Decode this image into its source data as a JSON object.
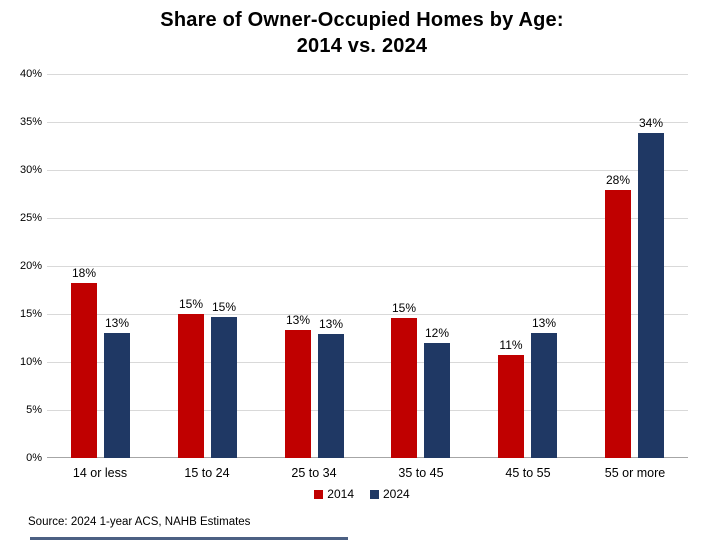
{
  "title": "Share of Owner-Occupied Homes by Age:\n2014 vs. 2024",
  "source": "Source: 2024 1-year ACS, NAHB Estimates",
  "colors": {
    "series_2014": "#C00000",
    "series_2024": "#1F3864",
    "gridline": "#D9D9D9",
    "axis_line": "#A6A6A6",
    "text": "#000000",
    "background": "#FFFFFF"
  },
  "chart_data": {
    "type": "bar",
    "title": "Share of Owner-Occupied Homes by Age: 2014 vs. 2024",
    "xlabel": "",
    "ylabel": "",
    "categories": [
      "14 or less",
      "15 to 24",
      "25 to 34",
      "35 to 45",
      "45 to 55",
      "55 or more"
    ],
    "series": [
      {
        "name": "2014",
        "color": "#C00000",
        "values": [
          18,
          15,
          13,
          15,
          11,
          28
        ],
        "values_exact": [
          18.2,
          15.0,
          13.3,
          14.6,
          10.7,
          27.9
        ],
        "labels": [
          "18%",
          "15%",
          "13%",
          "15%",
          "11%",
          "28%"
        ]
      },
      {
        "name": "2024",
        "color": "#1F3864",
        "values": [
          13,
          15,
          13,
          12,
          13,
          34
        ],
        "values_exact": [
          13.0,
          14.7,
          12.9,
          12.0,
          13.0,
          33.9
        ],
        "labels": [
          "13%",
          "15%",
          "13%",
          "12%",
          "13%",
          "34%"
        ]
      }
    ],
    "ylim": [
      0,
      40
    ],
    "ytick_step": 5,
    "ytick_labels": [
      "0%",
      "5%",
      "10%",
      "15%",
      "20%",
      "25%",
      "30%",
      "35%",
      "40%"
    ],
    "grid": true,
    "legend_position": "bottom"
  }
}
